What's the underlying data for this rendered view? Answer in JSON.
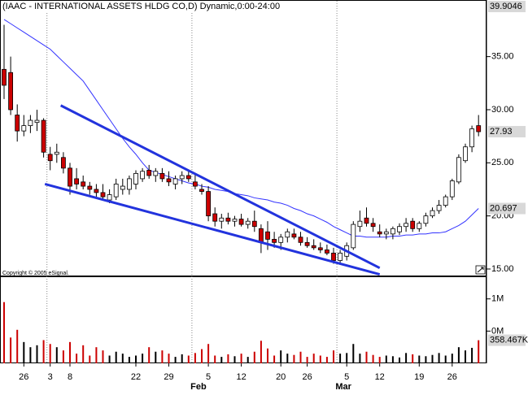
{
  "chart_data": [
    {
      "type": "candlestick",
      "title": "(IAAC - INTERNATIONAL ASSETS HLDG CO,D) Dynamic,0:00-24:00",
      "copyright": "Copyright © 2005 eSignal.",
      "categories": [
        null,
        null,
        null,
        "26",
        null,
        null,
        null,
        "3",
        null,
        null,
        "8",
        null,
        null,
        null,
        null,
        null,
        null,
        null,
        null,
        null,
        "22",
        null,
        null,
        null,
        null,
        "29",
        null,
        null,
        null,
        null,
        null,
        "5",
        null,
        null,
        null,
        null,
        "12",
        null,
        null,
        null,
        null,
        null,
        "20",
        null,
        null,
        null,
        "26",
        null,
        null,
        null,
        null,
        null,
        "5",
        null,
        null,
        null,
        null,
        "12",
        null,
        null,
        null,
        null,
        null,
        "19",
        null,
        null,
        null,
        null,
        "26",
        null,
        null,
        null,
        null
      ],
      "month_starts": [
        {
          "index": 7,
          "label": null
        },
        {
          "index": 29,
          "label": "Feb"
        },
        {
          "index": 51,
          "label": "Mar"
        }
      ],
      "open": [
        33.8,
        33.5,
        29.5,
        28.0,
        28.5,
        28.8,
        29.0,
        25.8,
        25.8,
        25.5,
        24.5,
        23.5,
        23.2,
        22.8,
        22.5,
        22.2,
        21.5,
        21.8,
        22.5,
        22.5,
        23.0,
        23.5,
        24.3,
        23.8,
        24.0,
        23.5,
        23.0,
        23.5,
        23.8,
        23.2,
        22.5,
        22.3,
        20.2,
        19.5,
        19.8,
        19.5,
        19.7,
        19.2,
        19.5,
        18.8,
        18.5,
        17.8,
        17.5,
        18.0,
        18.3,
        18.0,
        17.5,
        17.2,
        17.0,
        16.8,
        16.5,
        15.8,
        16.2,
        17.0,
        19.0,
        19.8,
        19.3,
        18.5,
        18.3,
        18.3,
        18.5,
        19.0,
        19.5,
        18.8,
        19.3,
        20.0,
        20.5,
        21.0,
        21.8,
        23.2,
        25.2,
        26.5,
        28.5
      ],
      "high": [
        38.0,
        35.0,
        30.5,
        29.5,
        29.5,
        30.0,
        29.2,
        26.5,
        26.8,
        26.0,
        25.0,
        24.5,
        23.8,
        23.2,
        23.0,
        23.0,
        22.5,
        23.5,
        23.5,
        23.8,
        24.3,
        24.5,
        24.8,
        24.5,
        24.5,
        24.2,
        23.8,
        24.2,
        24.3,
        24.0,
        23.0,
        22.8,
        20.8,
        20.2,
        20.3,
        20.0,
        20.2,
        19.8,
        20.5,
        19.2,
        19.5,
        18.5,
        18.3,
        18.8,
        18.8,
        18.5,
        18.0,
        17.8,
        17.5,
        17.3,
        17.0,
        16.8,
        17.5,
        19.5,
        20.5,
        20.8,
        19.8,
        19.2,
        18.8,
        19.0,
        19.3,
        19.8,
        19.8,
        19.5,
        20.3,
        20.8,
        21.5,
        22.0,
        23.5,
        25.8,
        26.8,
        28.5,
        29.5
      ],
      "low": [
        31.0,
        29.5,
        27.0,
        27.5,
        27.8,
        28.0,
        25.5,
        24.3,
        25.0,
        24.0,
        22.0,
        22.5,
        22.5,
        22.0,
        21.8,
        21.5,
        21.2,
        21.5,
        22.0,
        22.0,
        22.5,
        23.2,
        23.5,
        23.2,
        23.2,
        22.8,
        22.5,
        23.0,
        23.2,
        22.5,
        22.0,
        19.5,
        19.0,
        18.8,
        19.2,
        19.0,
        19.0,
        18.8,
        18.5,
        16.5,
        16.8,
        17.0,
        16.8,
        17.5,
        17.8,
        17.2,
        17.0,
        16.8,
        16.5,
        16.3,
        15.5,
        15.4,
        15.8,
        16.8,
        18.5,
        19.0,
        18.5,
        18.0,
        17.8,
        17.8,
        18.2,
        18.5,
        18.5,
        18.5,
        19.0,
        19.8,
        20.2,
        20.8,
        21.5,
        23.0,
        25.0,
        26.0,
        27.5
      ],
      "close": [
        32.3,
        30.0,
        28.0,
        28.5,
        29.0,
        29.0,
        26.0,
        25.2,
        26.0,
        24.5,
        22.8,
        23.0,
        22.8,
        22.5,
        22.2,
        21.8,
        22.0,
        23.0,
        22.8,
        23.5,
        24.0,
        24.2,
        23.8,
        24.2,
        23.5,
        23.2,
        23.5,
        23.8,
        23.5,
        22.8,
        22.3,
        20.0,
        19.5,
        19.8,
        19.5,
        19.7,
        19.2,
        19.5,
        19.0,
        17.5,
        17.8,
        17.5,
        18.0,
        18.5,
        18.0,
        17.5,
        17.2,
        17.0,
        16.8,
        16.5,
        15.8,
        16.5,
        17.2,
        19.2,
        19.5,
        19.3,
        19.0,
        18.3,
        18.5,
        18.8,
        19.0,
        19.3,
        18.8,
        19.3,
        20.0,
        20.5,
        21.0,
        21.8,
        23.3,
        25.5,
        26.5,
        28.2,
        27.93
      ],
      "up_color": "#ffffff",
      "down_color": "#cc0000",
      "ma": {
        "color": "#3333ff",
        "values": [
          38.5,
          38.1,
          37.7,
          37.3,
          36.9,
          36.5,
          36.1,
          35.7,
          35.1,
          34.5,
          33.9,
          33.3,
          32.7,
          31.8,
          30.9,
          30.0,
          29.1,
          28.2,
          27.3,
          26.5,
          25.8,
          25.0,
          24.3,
          24.1,
          23.9,
          23.7,
          23.5,
          23.3,
          23.1,
          23.0,
          22.8,
          22.7,
          22.5,
          22.4,
          22.3,
          22.1,
          22.0,
          21.9,
          21.7,
          21.6,
          21.5,
          21.3,
          21.2,
          21.0,
          20.7,
          20.5,
          20.2,
          20.0,
          19.7,
          19.4,
          19.0,
          18.7,
          18.4,
          18.1,
          18.1,
          18.0,
          18.0,
          18.0,
          18.0,
          18.1,
          18.1,
          18.2,
          18.2,
          18.3,
          18.3,
          18.4,
          18.4,
          18.5,
          18.8,
          19.1,
          19.5,
          20.1,
          20.697
        ]
      },
      "trendlines": {
        "color": "#2233dd",
        "lines": [
          {
            "x": [
              8.6,
              57
            ],
            "y": [
              30.4,
              15.1
            ]
          },
          {
            "x": [
              6.2,
              57
            ],
            "y": [
              23.0,
              14.5
            ]
          }
        ]
      },
      "ylim": [
        14.31,
        40.33
      ],
      "yticks": [
        {
          "value": 15,
          "label": "15.00"
        },
        {
          "value": 20,
          "label": "20.00"
        },
        {
          "value": 25,
          "label": "25.00"
        },
        {
          "value": 30,
          "label": "30.00"
        },
        {
          "value": 35,
          "label": "35.00"
        }
      ],
      "marker_labels": [
        39.9046,
        27.93,
        20.697
      ]
    },
    {
      "type": "bar",
      "values": [
        950000,
        400000,
        520000,
        330000,
        250000,
        280000,
        360000,
        300000,
        250000,
        200000,
        330000,
        150000,
        280000,
        120000,
        250000,
        200000,
        120000,
        180000,
        150000,
        100000,
        120000,
        150000,
        250000,
        180000,
        200000,
        150000,
        100000,
        140000,
        120000,
        160000,
        220000,
        300000,
        120000,
        100000,
        140000,
        110000,
        150000,
        100000,
        180000,
        350000,
        230000,
        120000,
        200000,
        150000,
        130000,
        180000,
        100000,
        150000,
        120000,
        100000,
        200000,
        150000,
        160000,
        300000,
        150000,
        180000,
        130000,
        100000,
        120000,
        110000,
        90000,
        160000,
        140000,
        120000,
        110000,
        130000,
        160000,
        120000,
        150000,
        250000,
        200000,
        240000,
        358467
      ],
      "ylim": [
        0,
        1350000
      ],
      "yticks": [
        {
          "value": 500000,
          "label": "0M"
        },
        {
          "value": 1000000,
          "label": "1M"
        }
      ],
      "marker_labels": [
        {
          "value": 358467,
          "label": "358.467K"
        }
      ]
    }
  ]
}
